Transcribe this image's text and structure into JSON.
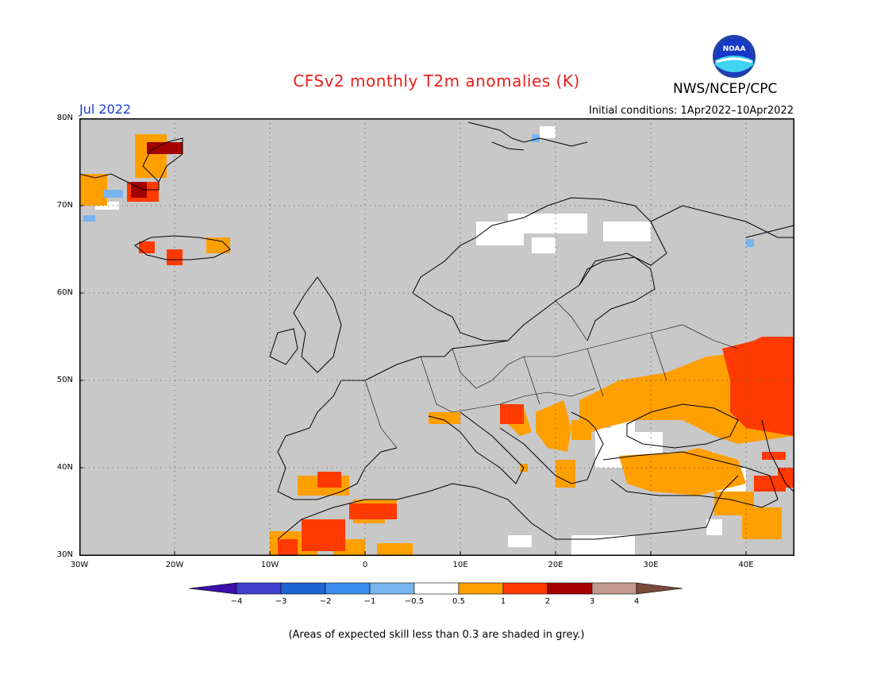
{
  "header": {
    "title": "CFSv2 monthly T2m anomalies (K)",
    "agency": "NWS/NCEP/CPC",
    "month": "Jul 2022",
    "initial_conditions": "Initial conditions: 1Apr2022–10Apr2022"
  },
  "map": {
    "lat_labels": [
      "80N",
      "70N",
      "60N",
      "50N",
      "40N",
      "30N"
    ],
    "lon_labels": [
      "30W",
      "20W",
      "10W",
      "0",
      "10E",
      "20E",
      "30E",
      "40E"
    ],
    "colors": {
      "ocean": "#c8c8c8",
      "coast": "#000000",
      "grid": "#555555",
      "white": "#ffffff",
      "orange": "#ff9f00",
      "red": "#ff3a00",
      "darkred": "#a50000",
      "blue_light": "#78b4f0"
    }
  },
  "colorbar": {
    "labels": [
      "−4",
      "−3",
      "−2",
      "−1",
      "−0.5",
      "0.5",
      "1",
      "2",
      "3",
      "4"
    ],
    "colors": [
      "#3a10a8",
      "#4040d0",
      "#1e64d2",
      "#3c8ced",
      "#78b4f0",
      "#ffffff",
      "#ff9f00",
      "#ff3a00",
      "#a50000",
      "#c49a8c",
      "#7a4a3a"
    ]
  },
  "footnote": "(Areas of expected skill less than 0.3 are shaded in grey.)"
}
